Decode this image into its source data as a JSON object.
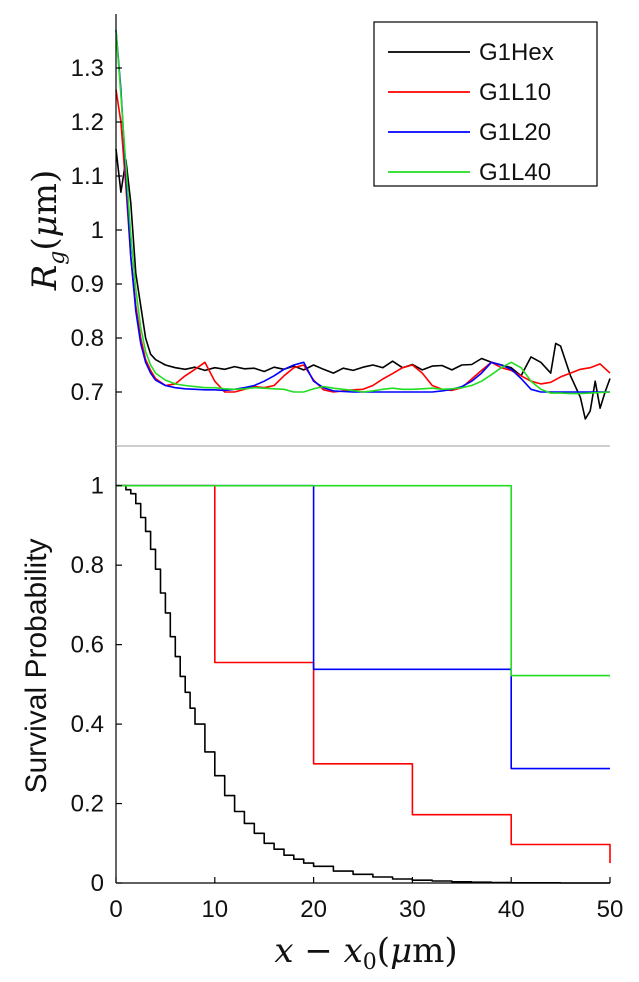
{
  "chart_data": [
    {
      "type": "line",
      "xlabel": "",
      "ylabel": "R_g(μm)",
      "ylabel_display": "Rg(μm)",
      "xlim": [
        0,
        50
      ],
      "ylim": [
        0.6,
        1.4
      ],
      "yticks": [
        0.7,
        0.8,
        0.9,
        1,
        1.1,
        1.2,
        1.3
      ],
      "ytick_labels": [
        "0.7",
        "0.8",
        "0.9",
        "1",
        "1.1",
        "1.2",
        "1.3"
      ],
      "grid": false,
      "legend_position": "top-right",
      "series": [
        {
          "name": "G1Hex",
          "color": "#000000",
          "x": [
            0,
            0.5,
            1,
            1.5,
            2,
            2.5,
            3,
            3.5,
            4,
            4.5,
            5,
            6,
            7,
            8,
            9,
            10,
            11,
            12,
            13,
            14,
            15,
            16,
            17,
            18,
            19,
            20,
            21,
            22,
            23,
            24,
            25,
            26,
            27,
            28,
            29,
            30,
            31,
            32,
            33,
            34,
            35,
            36,
            37,
            38,
            39,
            40,
            41,
            42,
            43,
            44,
            44.5,
            45,
            46,
            47,
            47.5,
            48,
            48.5,
            49,
            49.5,
            50
          ],
          "y": [
            1.15,
            1.07,
            1.13,
            1.05,
            0.92,
            0.86,
            0.8,
            0.77,
            0.76,
            0.755,
            0.75,
            0.745,
            0.742,
            0.746,
            0.74,
            0.745,
            0.742,
            0.747,
            0.743,
            0.744,
            0.738,
            0.746,
            0.742,
            0.748,
            0.741,
            0.75,
            0.742,
            0.735,
            0.744,
            0.74,
            0.746,
            0.75,
            0.745,
            0.757,
            0.745,
            0.751,
            0.741,
            0.748,
            0.749,
            0.741,
            0.75,
            0.751,
            0.762,
            0.755,
            0.75,
            0.745,
            0.73,
            0.765,
            0.755,
            0.735,
            0.79,
            0.785,
            0.73,
            0.69,
            0.65,
            0.665,
            0.72,
            0.67,
            0.7,
            0.725
          ]
        },
        {
          "name": "G1L10",
          "color": "#ff0000",
          "x": [
            0,
            0.5,
            1,
            1.5,
            2,
            2.5,
            3,
            3.5,
            4,
            5,
            6,
            7,
            8,
            9,
            10,
            11,
            12,
            13,
            14,
            15,
            16,
            17,
            18,
            19,
            20,
            21,
            22,
            23,
            24,
            25,
            26,
            27,
            28,
            29,
            30,
            31,
            32,
            33,
            34,
            35,
            36,
            37,
            38,
            39,
            40,
            41,
            42,
            43,
            44,
            45,
            46,
            47,
            48,
            49,
            50
          ],
          "y": [
            1.26,
            1.2,
            1.08,
            0.95,
            0.86,
            0.8,
            0.76,
            0.74,
            0.725,
            0.712,
            0.715,
            0.73,
            0.742,
            0.755,
            0.72,
            0.7,
            0.7,
            0.705,
            0.71,
            0.708,
            0.712,
            0.73,
            0.745,
            0.75,
            0.722,
            0.704,
            0.7,
            0.702,
            0.704,
            0.705,
            0.712,
            0.724,
            0.734,
            0.745,
            0.75,
            0.735,
            0.712,
            0.705,
            0.703,
            0.708,
            0.724,
            0.74,
            0.755,
            0.745,
            0.74,
            0.73,
            0.72,
            0.715,
            0.718,
            0.728,
            0.735,
            0.742,
            0.745,
            0.752,
            0.735
          ]
        },
        {
          "name": "G1L20",
          "color": "#0000ff",
          "x": [
            0,
            0.5,
            1,
            1.5,
            2,
            2.5,
            3,
            3.5,
            4,
            5,
            6,
            7,
            8,
            9,
            10,
            11,
            12,
            13,
            14,
            15,
            16,
            17,
            18,
            19,
            20,
            21,
            22,
            23,
            24,
            25,
            26,
            27,
            28,
            29,
            30,
            31,
            32,
            33,
            34,
            35,
            36,
            37,
            38,
            39,
            40,
            41,
            42,
            43,
            44,
            45,
            46,
            47,
            48,
            49,
            50
          ],
          "y": [
            1.37,
            1.26,
            1.1,
            0.95,
            0.85,
            0.79,
            0.755,
            0.735,
            0.722,
            0.712,
            0.708,
            0.706,
            0.705,
            0.704,
            0.704,
            0.703,
            0.705,
            0.708,
            0.712,
            0.72,
            0.73,
            0.742,
            0.75,
            0.755,
            0.72,
            0.708,
            0.702,
            0.701,
            0.7,
            0.7,
            0.7,
            0.7,
            0.7,
            0.7,
            0.7,
            0.7,
            0.7,
            0.702,
            0.705,
            0.71,
            0.72,
            0.735,
            0.755,
            0.75,
            0.742,
            0.725,
            0.705,
            0.7,
            0.7,
            0.7,
            0.7,
            0.7,
            0.7,
            0.7,
            0.7
          ]
        },
        {
          "name": "G1L40",
          "color": "#22dd22",
          "x": [
            0,
            0.5,
            1,
            1.5,
            2,
            2.5,
            3,
            3.5,
            4,
            5,
            6,
            7,
            8,
            9,
            10,
            11,
            12,
            13,
            14,
            15,
            16,
            17,
            18,
            19,
            20,
            21,
            22,
            23,
            24,
            25,
            26,
            27,
            28,
            29,
            30,
            31,
            32,
            33,
            34,
            35,
            36,
            37,
            38,
            39,
            40,
            41,
            42,
            43,
            44,
            45,
            46,
            47,
            48,
            49,
            50
          ],
          "y": [
            1.37,
            1.25,
            1.12,
            0.99,
            0.89,
            0.82,
            0.775,
            0.75,
            0.735,
            0.722,
            0.715,
            0.712,
            0.71,
            0.708,
            0.708,
            0.706,
            0.705,
            0.706,
            0.708,
            0.707,
            0.706,
            0.705,
            0.7,
            0.7,
            0.706,
            0.71,
            0.707,
            0.705,
            0.703,
            0.7,
            0.702,
            0.705,
            0.707,
            0.705,
            0.705,
            0.706,
            0.707,
            0.705,
            0.706,
            0.708,
            0.712,
            0.72,
            0.732,
            0.745,
            0.755,
            0.745,
            0.72,
            0.705,
            0.698,
            0.698,
            0.697,
            0.697,
            0.698,
            0.699,
            0.7
          ]
        }
      ]
    },
    {
      "type": "line",
      "xlabel": "x − x0(μm)",
      "ylabel": "Survival Probability",
      "xlim": [
        0,
        50
      ],
      "ylim": [
        0,
        1.1
      ],
      "xticks": [
        0,
        10,
        20,
        30,
        40,
        50
      ],
      "xtick_labels": [
        "0",
        "10",
        "20",
        "30",
        "40",
        "50"
      ],
      "yticks": [
        0,
        0.2,
        0.4,
        0.6,
        0.8,
        1
      ],
      "ytick_labels": [
        "0",
        "0.2",
        "0.4",
        "0.6",
        "0.8",
        "1"
      ],
      "grid": false,
      "series": [
        {
          "name": "G1Hex",
          "color": "#000000",
          "x": [
            0,
            0.5,
            1,
            1.5,
            2,
            2.5,
            3,
            3.5,
            4,
            4.5,
            5,
            5.5,
            6,
            6.5,
            7,
            7.5,
            8,
            9,
            10,
            11,
            12,
            13,
            14,
            15,
            16,
            17,
            18,
            19,
            20,
            22,
            24,
            26,
            28,
            30,
            32,
            34,
            36,
            38,
            40,
            45,
            50
          ],
          "y": [
            1,
            1,
            0.99,
            0.98,
            0.955,
            0.92,
            0.885,
            0.84,
            0.79,
            0.73,
            0.68,
            0.62,
            0.57,
            0.52,
            0.48,
            0.44,
            0.4,
            0.33,
            0.27,
            0.22,
            0.18,
            0.15,
            0.125,
            0.1,
            0.085,
            0.07,
            0.06,
            0.05,
            0.042,
            0.03,
            0.022,
            0.015,
            0.01,
            0.007,
            0.005,
            0.003,
            0.002,
            0.001,
            0.0005,
            0,
            0
          ]
        },
        {
          "name": "G1L10",
          "color": "#ff0000",
          "step": true,
          "x": [
            0,
            10,
            10,
            20,
            20,
            30,
            30,
            40,
            40,
            50,
            50
          ],
          "y": [
            1,
            1,
            0.555,
            0.555,
            0.3,
            0.3,
            0.172,
            0.172,
            0.097,
            0.097,
            0.05
          ]
        },
        {
          "name": "G1L20",
          "color": "#0000ff",
          "step": true,
          "x": [
            0,
            20,
            20,
            40,
            40,
            50
          ],
          "y": [
            1,
            1,
            0.538,
            0.538,
            0.288,
            0.288
          ]
        },
        {
          "name": "G1L40",
          "color": "#22dd22",
          "step": true,
          "x": [
            0,
            40,
            40,
            50
          ],
          "y": [
            1,
            1,
            0.522,
            0.522
          ]
        }
      ]
    }
  ]
}
